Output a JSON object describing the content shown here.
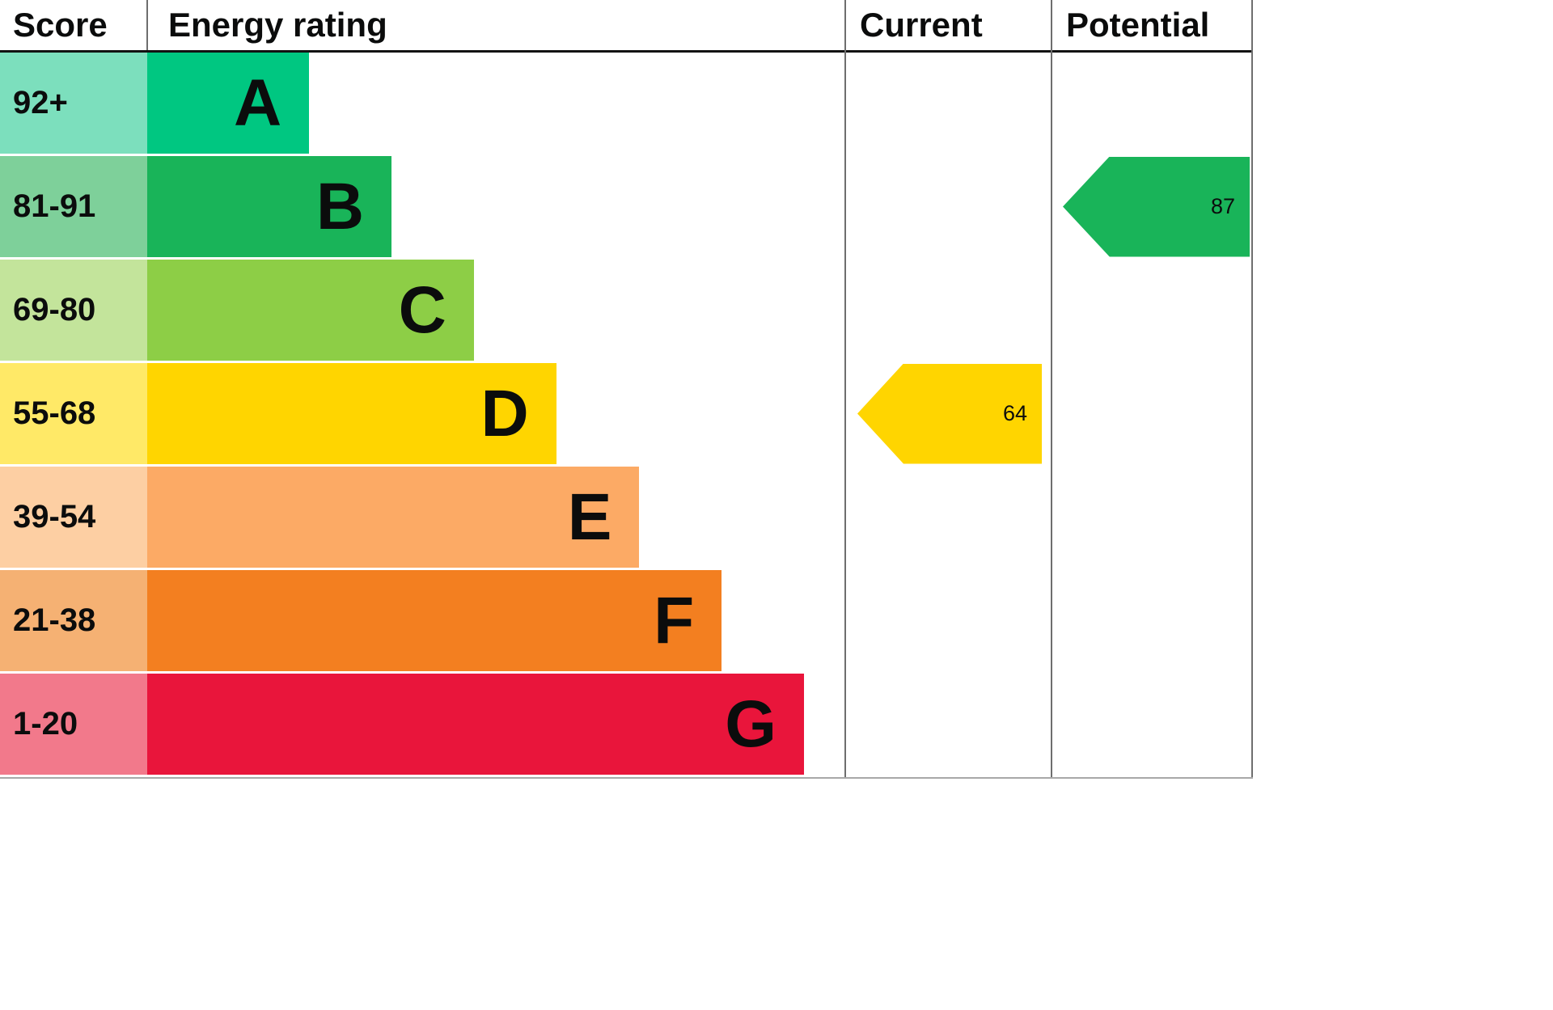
{
  "chart_data": {
    "type": "bar",
    "subtype": "epc-energy-rating",
    "columns": {
      "score": "Score",
      "rating": "Energy rating",
      "current": "Current",
      "potential": "Potential"
    },
    "bands": [
      {
        "score": "92+",
        "letter": "A",
        "bar_color": "#00c781",
        "score_color": "#7cdfbd",
        "width_pct": 23.2
      },
      {
        "score": "81-91",
        "letter": "B",
        "bar_color": "#19b459",
        "score_color": "#7ed09a",
        "width_pct": 35.0
      },
      {
        "score": "69-80",
        "letter": "C",
        "bar_color": "#8dce46",
        "score_color": "#c3e49b",
        "width_pct": 46.8
      },
      {
        "score": "55-68",
        "letter": "D",
        "bar_color": "#ffd500",
        "score_color": "#ffe967",
        "width_pct": 58.6
      },
      {
        "score": "39-54",
        "letter": "E",
        "bar_color": "#fcaa65",
        "score_color": "#fdcfa3",
        "width_pct": 70.5
      },
      {
        "score": "21-38",
        "letter": "F",
        "bar_color": "#f37f20",
        "score_color": "#f5b173",
        "width_pct": 82.3
      },
      {
        "score": "1-20",
        "letter": "G",
        "bar_color": "#e9153b",
        "score_color": "#f2798b",
        "width_pct": 94.1
      }
    ],
    "current": {
      "value": 64,
      "band_letter": "D",
      "band_index": 3,
      "arrow_color": "#ffd500"
    },
    "potential": {
      "value": 87,
      "band_letter": "B",
      "band_index": 1,
      "arrow_color": "#19b459"
    }
  }
}
